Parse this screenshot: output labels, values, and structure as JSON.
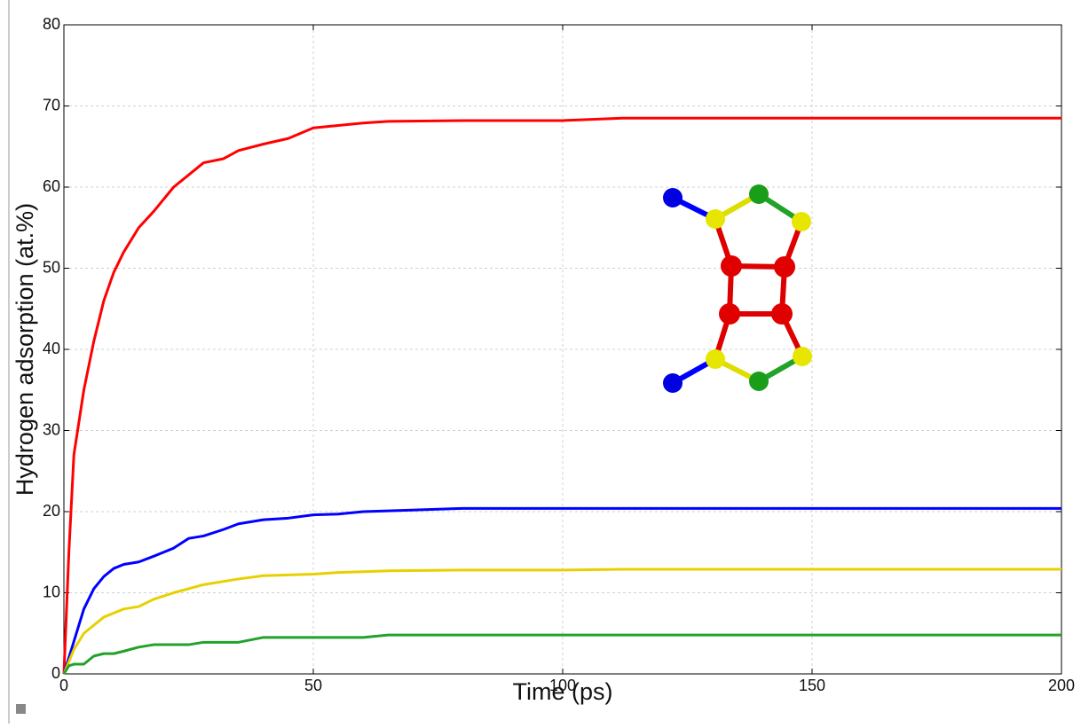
{
  "chart_data": {
    "type": "line",
    "x_label": "Time (ps)",
    "y_label": "Hydrogen adsorption (at.%)",
    "x": [
      0,
      1,
      2,
      3,
      4,
      6,
      8,
      10,
      12,
      15,
      18,
      20,
      22,
      25,
      28,
      32,
      35,
      40,
      45,
      50,
      55,
      60,
      65,
      80,
      90,
      100,
      112,
      150,
      200
    ],
    "series": [
      {
        "color": "#ff0000",
        "values": [
          0,
          15,
          27,
          31,
          35,
          41,
          46,
          49.5,
          52,
          55,
          57,
          58.5,
          60,
          61.5,
          63,
          63.5,
          64.5,
          65.3,
          66,
          67.3,
          67.6,
          67.9,
          68.1,
          68.2,
          68.2,
          68.2,
          68.5,
          68.5,
          68.5
        ]
      },
      {
        "color": "#0000ff",
        "values": [
          0,
          2,
          4,
          6,
          8,
          10.5,
          12,
          13,
          13.5,
          13.8,
          14.5,
          15,
          15.5,
          16.7,
          17,
          17.8,
          18.5,
          19,
          19.2,
          19.6,
          19.7,
          20,
          20.1,
          20.4,
          20.4,
          20.4,
          20.4,
          20.4,
          20.4
        ]
      },
      {
        "color": "#e8d000",
        "values": [
          0,
          1.5,
          3,
          4,
          5,
          6,
          7,
          7.5,
          8,
          8.3,
          9.2,
          9.6,
          10,
          10.5,
          11,
          11.4,
          11.7,
          12.1,
          12.2,
          12.3,
          12.5,
          12.6,
          12.7,
          12.8,
          12.8,
          12.8,
          12.9,
          12.9,
          12.9
        ]
      },
      {
        "color": "#22a22a",
        "values": [
          0,
          1,
          1.2,
          1.2,
          1.2,
          2.2,
          2.5,
          2.5,
          2.8,
          3.3,
          3.6,
          3.6,
          3.6,
          3.6,
          3.9,
          3.9,
          3.9,
          4.5,
          4.5,
          4.5,
          4.5,
          4.5,
          4.8,
          4.8,
          4.8,
          4.8,
          4.8,
          4.8,
          4.8
        ]
      }
    ],
    "xlim": [
      0,
      200
    ],
    "ylim": [
      0,
      80
    ],
    "xticks": [
      0,
      50,
      100,
      150,
      200
    ],
    "yticks": [
      0,
      10,
      20,
      30,
      40,
      50,
      60,
      70,
      80
    ],
    "grid": true
  }
}
